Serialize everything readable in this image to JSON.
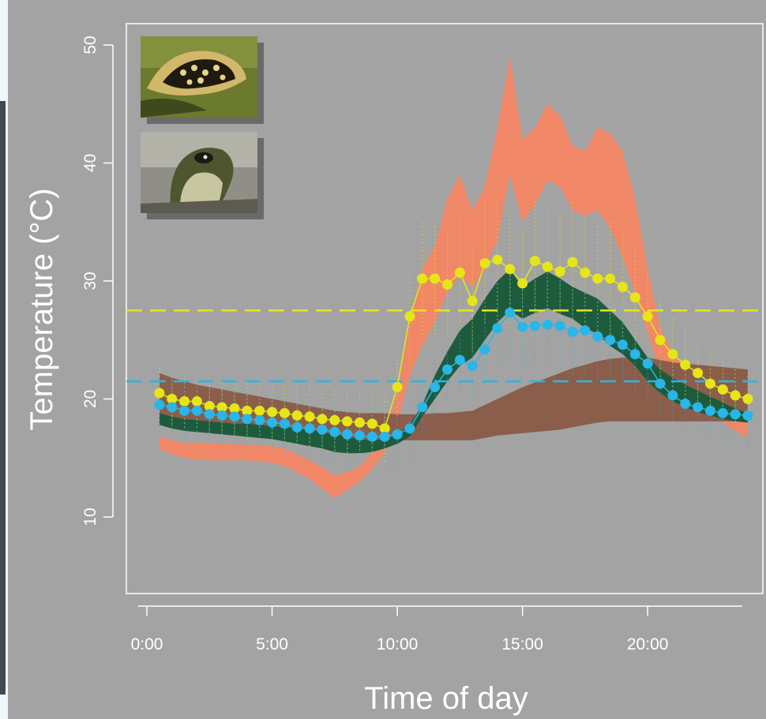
{
  "chart_data": {
    "type": "line",
    "title": "",
    "xlabel": "Time of day",
    "ylabel": "Temperature (°C)",
    "xlim": [
      -0.5,
      24.5
    ],
    "ylim": [
      3,
      52
    ],
    "grid": false,
    "legend": "none",
    "x_ticks": [
      {
        "value": 0,
        "label": "0:00"
      },
      {
        "value": 5,
        "label": "5:00"
      },
      {
        "value": 10,
        "label": "10:00"
      },
      {
        "value": 15,
        "label": "15:00"
      },
      {
        "value": 20,
        "label": "20:00"
      }
    ],
    "y_ticks": [
      10,
      20,
      30,
      40,
      50
    ],
    "reference_lines": [
      {
        "y": 27.5,
        "color": "#e6e617",
        "style": "dashed"
      },
      {
        "y": 21.5,
        "color": "#29b6e8",
        "style": "dashed"
      }
    ],
    "bands": [
      {
        "color": "#f08868",
        "x": [
          0.5,
          1,
          1.5,
          2,
          2.5,
          3,
          3.5,
          4,
          4.5,
          5,
          5.5,
          6,
          6.5,
          7,
          7.5,
          8,
          8.5,
          9,
          9.5,
          10,
          10.5,
          11,
          11.5,
          12,
          12.5,
          13,
          13.5,
          14,
          14.5,
          15,
          15.5,
          16,
          16.5,
          17,
          17.5,
          18,
          18.5,
          19,
          19.5,
          20,
          20.5,
          21,
          21.5,
          22,
          22.5,
          23,
          23.5,
          24
        ],
        "upper": [
          16.8,
          16.5,
          16.3,
          16.3,
          16.3,
          16.2,
          16.2,
          16.1,
          16.1,
          16.0,
          15.8,
          15.3,
          14.8,
          14.2,
          13.5,
          13.8,
          14.3,
          15.5,
          17.0,
          20.5,
          26.5,
          31.0,
          33.0,
          37.0,
          39.0,
          36.0,
          38.0,
          43.0,
          49.0,
          42.0,
          43.0,
          45.0,
          44.0,
          41.5,
          41.0,
          43.0,
          42.5,
          41.0,
          37.0,
          31.0,
          26.0,
          24.0,
          22.5,
          21.0,
          20.5,
          20.0,
          19.5,
          19.0
        ],
        "lower": [
          15.8,
          15.3,
          15.0,
          14.9,
          14.8,
          14.8,
          14.8,
          14.8,
          14.7,
          14.6,
          14.3,
          13.8,
          13.2,
          12.4,
          11.6,
          12.3,
          13.0,
          14.0,
          15.5,
          18.0,
          22.0,
          24.5,
          26.5,
          29.0,
          30.5,
          29.5,
          31.0,
          33.5,
          39.0,
          35.0,
          36.5,
          38.5,
          38.0,
          36.0,
          35.5,
          36.0,
          34.5,
          32.0,
          29.0,
          25.5,
          22.5,
          21.0,
          20.0,
          19.3,
          18.7,
          18.0,
          17.3,
          16.7
        ]
      },
      {
        "color": "#8a5e4a",
        "x": [
          0.5,
          1,
          1.5,
          2,
          2.5,
          3,
          3.5,
          4,
          4.5,
          5,
          5.5,
          6,
          6.5,
          7,
          7.5,
          8,
          8.5,
          9,
          9.5,
          10,
          10.5,
          11,
          11.5,
          12,
          12.5,
          13,
          13.5,
          14,
          14.5,
          15,
          15.5,
          16,
          16.5,
          17,
          17.5,
          18,
          18.5,
          19,
          19.5,
          20,
          20.5,
          21,
          21.5,
          22,
          22.5,
          23,
          23.5,
          24
        ],
        "upper": [
          22.2,
          21.8,
          21.5,
          21.2,
          21.0,
          20.8,
          20.6,
          20.4,
          20.2,
          20.0,
          19.8,
          19.6,
          19.4,
          19.2,
          19.0,
          18.9,
          18.8,
          18.8,
          18.8,
          18.7,
          18.7,
          18.7,
          18.8,
          18.8,
          18.9,
          19.0,
          19.5,
          20.0,
          20.5,
          21.0,
          21.4,
          21.8,
          22.2,
          22.6,
          22.9,
          23.2,
          23.4,
          23.5,
          23.5,
          23.5,
          23.3,
          23.1,
          23.0,
          22.9,
          22.8,
          22.7,
          22.6,
          22.5
        ],
        "lower": [
          18.0,
          17.8,
          17.6,
          17.4,
          17.3,
          17.2,
          17.1,
          17.0,
          16.9,
          16.8,
          16.8,
          16.7,
          16.7,
          16.6,
          16.6,
          16.5,
          16.5,
          16.5,
          16.5,
          16.5,
          16.5,
          16.5,
          16.5,
          16.5,
          16.5,
          16.5,
          16.7,
          16.9,
          17.0,
          17.1,
          17.2,
          17.3,
          17.4,
          17.6,
          17.8,
          18.0,
          18.1,
          18.1,
          18.1,
          18.1,
          18.1,
          18.1,
          18.1,
          18.1,
          18.1,
          18.1,
          18.1,
          18.1
        ]
      },
      {
        "color": "#1e5a3c",
        "x": [
          0.5,
          1,
          1.5,
          2,
          2.5,
          3,
          3.5,
          4,
          4.5,
          5,
          5.5,
          6,
          6.5,
          7,
          7.5,
          8,
          8.5,
          9,
          9.5,
          10,
          10.5,
          11,
          11.5,
          12,
          12.5,
          13,
          13.5,
          14,
          14.5,
          15,
          15.5,
          16,
          16.5,
          17,
          17.5,
          18,
          18.5,
          19,
          19.5,
          20,
          20.5,
          21,
          21.5,
          22,
          22.5,
          23,
          23.5,
          24
        ],
        "upper": [
          18.8,
          18.5,
          18.3,
          18.2,
          18.1,
          18.0,
          17.9,
          17.9,
          17.8,
          17.7,
          17.6,
          17.5,
          17.4,
          17.2,
          17.0,
          16.8,
          16.6,
          16.5,
          16.6,
          17.0,
          17.8,
          19.5,
          22.0,
          24.0,
          25.8,
          26.8,
          28.5,
          30.0,
          31.0,
          29.5,
          30.2,
          30.8,
          30.2,
          29.5,
          29.0,
          28.5,
          27.5,
          26.5,
          25.0,
          23.5,
          22.5,
          21.8,
          21.2,
          20.7,
          20.2,
          19.7,
          19.2,
          18.8
        ],
        "lower": [
          17.8,
          17.5,
          17.3,
          17.2,
          17.1,
          17.0,
          16.9,
          16.8,
          16.7,
          16.6,
          16.4,
          16.2,
          16.0,
          15.8,
          15.5,
          15.4,
          15.4,
          15.5,
          15.8,
          16.2,
          16.8,
          18.5,
          20.0,
          21.5,
          22.8,
          23.5,
          25.0,
          26.5,
          27.5,
          26.8,
          27.3,
          27.7,
          27.2,
          26.8,
          26.0,
          25.5,
          24.5,
          23.8,
          22.8,
          21.5,
          20.5,
          19.8,
          19.3,
          18.9,
          18.6,
          18.3,
          18.1,
          18.0
        ]
      }
    ],
    "series": [
      {
        "color": "#e6e617",
        "x": [
          0.5,
          1,
          1.5,
          2,
          2.5,
          3,
          3.5,
          4,
          4.5,
          5,
          5.5,
          6,
          6.5,
          7,
          7.5,
          8,
          8.5,
          9,
          9.5,
          10,
          10.5,
          11,
          11.5,
          12,
          12.5,
          13,
          13.5,
          14,
          14.5,
          15,
          15.5,
          16,
          16.5,
          17,
          17.5,
          18,
          18.5,
          19,
          19.5,
          20,
          20.5,
          21,
          21.5,
          22,
          22.5,
          23,
          23.5,
          24
        ],
        "y": [
          20.5,
          20.0,
          19.8,
          19.8,
          19.4,
          19.3,
          19.2,
          19.0,
          19.0,
          18.9,
          18.8,
          18.6,
          18.5,
          18.3,
          18.2,
          18.1,
          18.0,
          17.9,
          17.5,
          21.0,
          27.0,
          30.2,
          30.2,
          29.7,
          30.7,
          28.3,
          31.5,
          31.8,
          31.0,
          29.8,
          31.7,
          31.2,
          30.8,
          31.6,
          30.7,
          30.2,
          30.2,
          29.5,
          28.6,
          27.0,
          25.0,
          23.8,
          22.9,
          22.2,
          21.3,
          20.8,
          20.3,
          20.0
        ]
      },
      {
        "color": "#29b6e8",
        "x": [
          0.5,
          1,
          1.5,
          2,
          2.5,
          3,
          3.5,
          4,
          4.5,
          5,
          5.5,
          6,
          6.5,
          7,
          7.5,
          8,
          8.5,
          9,
          9.5,
          10,
          10.5,
          11,
          11.5,
          12,
          12.5,
          13,
          13.5,
          14,
          14.5,
          15,
          15.5,
          16,
          16.5,
          17,
          17.5,
          18,
          18.5,
          19,
          19.5,
          20,
          20.5,
          21,
          21.5,
          22,
          22.5,
          23,
          23.5,
          24
        ],
        "y": [
          19.5,
          19.3,
          19.0,
          19.0,
          18.7,
          18.6,
          18.5,
          18.3,
          18.2,
          18.0,
          17.9,
          17.6,
          17.5,
          17.4,
          17.2,
          17.0,
          16.9,
          16.8,
          16.8,
          17.0,
          17.5,
          19.3,
          21.0,
          22.5,
          23.3,
          22.8,
          24.2,
          26.0,
          27.3,
          26.1,
          26.2,
          26.3,
          26.2,
          25.7,
          25.8,
          25.3,
          25.0,
          24.6,
          23.8,
          23.0,
          21.3,
          20.3,
          19.6,
          19.3,
          19.0,
          18.8,
          18.7,
          18.6
        ]
      }
    ]
  }
}
